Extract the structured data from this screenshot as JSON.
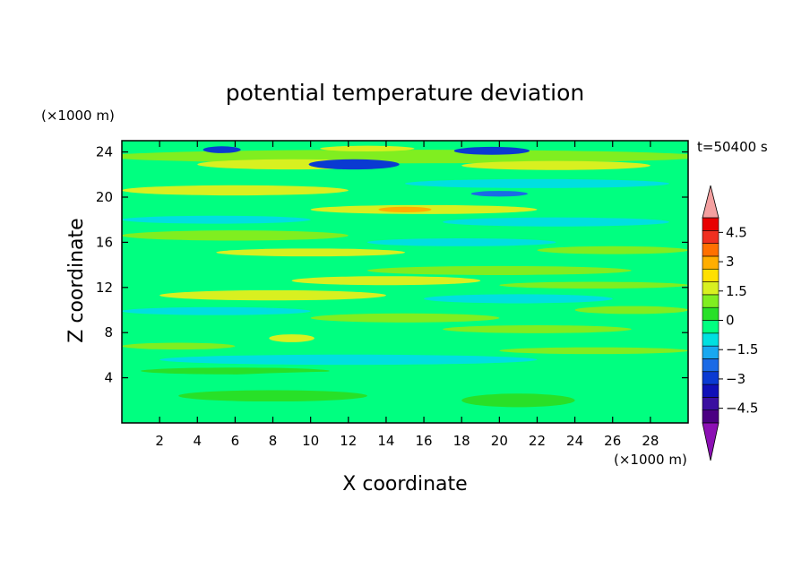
{
  "chart_data": {
    "type": "heatmap",
    "title": "potential temperature deviation",
    "time_label": "t=50400 s",
    "xlabel": "X coordinate",
    "ylabel": "Z coordinate",
    "x_unit": "(×1000 m)",
    "y_unit": "(×1000 m)",
    "xlim": [
      0,
      30
    ],
    "ylim": [
      0,
      25
    ],
    "x_ticks": [
      "2",
      "4",
      "6",
      "8",
      "10",
      "12",
      "14",
      "16",
      "18",
      "20",
      "22",
      "24",
      "26",
      "28"
    ],
    "y_ticks": [
      "4",
      "8",
      "12",
      "16",
      "20",
      "24"
    ],
    "colorbar": {
      "labels": [
        "4.5",
        "3",
        "1.5",
        "0",
        "−1.5",
        "−3",
        "−4.5"
      ],
      "label_values": [
        4.5,
        3,
        1.5,
        0,
        -1.5,
        -3,
        -4.5
      ],
      "levels": [
        -5.25,
        -4.5,
        -3.75,
        -3,
        -2.25,
        -1.5,
        -0.75,
        0,
        0.75,
        1.5,
        2.25,
        3,
        3.75,
        4.5,
        5.25
      ],
      "colors": [
        "#4b0082",
        "#3a0fa0",
        "#1010b8",
        "#0a3ad2",
        "#1a6ae6",
        "#18a8f0",
        "#00e0e0",
        "#00ff80",
        "#28e028",
        "#80ee20",
        "#d8f020",
        "#ffe000",
        "#ffae00",
        "#ff7000",
        "#f03020",
        "#e80000"
      ],
      "over_color": "#f4a0a0",
      "under_color": "#8c10b4"
    },
    "bands": [
      {
        "cx": 15,
        "cy": 23.6,
        "rx": 16,
        "ry": 0.6,
        "value": 1.1
      },
      {
        "cx": 9,
        "cy": 22.9,
        "rx": 5,
        "ry": 0.45,
        "value": 1.8
      },
      {
        "cx": 23,
        "cy": 22.8,
        "rx": 5,
        "ry": 0.4,
        "value": 1.5
      },
      {
        "cx": 12.3,
        "cy": 22.9,
        "rx": 2.4,
        "ry": 0.45,
        "value": -3.2
      },
      {
        "cx": 19.6,
        "cy": 24.1,
        "rx": 2.0,
        "ry": 0.35,
        "value": -3.5
      },
      {
        "cx": 5.3,
        "cy": 24.2,
        "rx": 1.0,
        "ry": 0.3,
        "value": -3.2
      },
      {
        "cx": 13,
        "cy": 24.3,
        "rx": 2.5,
        "ry": 0.25,
        "value": 2.2
      },
      {
        "cx": 22,
        "cy": 21.2,
        "rx": 7,
        "ry": 0.4,
        "value": -1.0
      },
      {
        "cx": 6,
        "cy": 20.6,
        "rx": 6,
        "ry": 0.45,
        "value": 1.5
      },
      {
        "cx": 20,
        "cy": 20.3,
        "rx": 1.5,
        "ry": 0.25,
        "value": -2.5
      },
      {
        "cx": 16,
        "cy": 18.9,
        "rx": 6,
        "ry": 0.4,
        "value": 1.6
      },
      {
        "cx": 15,
        "cy": 18.9,
        "rx": 1.4,
        "ry": 0.25,
        "value": 3.6
      },
      {
        "cx": 5,
        "cy": 18.0,
        "rx": 5,
        "ry": 0.35,
        "value": -0.9
      },
      {
        "cx": 23,
        "cy": 17.8,
        "rx": 6,
        "ry": 0.4,
        "value": -0.8
      },
      {
        "cx": 6,
        "cy": 16.6,
        "rx": 6,
        "ry": 0.45,
        "value": 1.3
      },
      {
        "cx": 10,
        "cy": 15.1,
        "rx": 5,
        "ry": 0.35,
        "value": 1.6
      },
      {
        "cx": 26,
        "cy": 15.3,
        "rx": 4,
        "ry": 0.35,
        "value": 1.0
      },
      {
        "cx": 18,
        "cy": 16.0,
        "rx": 5,
        "ry": 0.35,
        "value": -0.9
      },
      {
        "cx": 20,
        "cy": 13.5,
        "rx": 7,
        "ry": 0.4,
        "value": 1.2
      },
      {
        "cx": 14,
        "cy": 12.6,
        "rx": 5,
        "ry": 0.4,
        "value": 1.6
      },
      {
        "cx": 8,
        "cy": 11.3,
        "rx": 6,
        "ry": 0.45,
        "value": 1.7
      },
      {
        "cx": 25,
        "cy": 12.2,
        "rx": 5,
        "ry": 0.3,
        "value": 1.0
      },
      {
        "cx": 21,
        "cy": 11.0,
        "rx": 5,
        "ry": 0.4,
        "value": -1.0
      },
      {
        "cx": 27,
        "cy": 10.0,
        "rx": 3,
        "ry": 0.35,
        "value": 1.2
      },
      {
        "cx": 15,
        "cy": 9.3,
        "rx": 5,
        "ry": 0.4,
        "value": 1.3
      },
      {
        "cx": 5,
        "cy": 9.9,
        "rx": 5,
        "ry": 0.35,
        "value": -0.8
      },
      {
        "cx": 22,
        "cy": 8.3,
        "rx": 5,
        "ry": 0.35,
        "value": 1.1
      },
      {
        "cx": 9,
        "cy": 7.5,
        "rx": 1.2,
        "ry": 0.35,
        "value": 1.6
      },
      {
        "cx": 3,
        "cy": 6.8,
        "rx": 3,
        "ry": 0.3,
        "value": 0.9
      },
      {
        "cx": 16,
        "cy": 6.9,
        "rx": 8,
        "ry": 0.35,
        "value": -0.7
      },
      {
        "cx": 25,
        "cy": 6.4,
        "rx": 5,
        "ry": 0.3,
        "value": 0.9
      },
      {
        "cx": 12,
        "cy": 5.6,
        "rx": 10,
        "ry": 0.45,
        "value": -0.8
      },
      {
        "cx": 6,
        "cy": 4.6,
        "rx": 5,
        "ry": 0.3,
        "value": 0.6
      },
      {
        "cx": 15,
        "cy": 3.2,
        "rx": 14,
        "ry": 1.4,
        "value": -0.35
      },
      {
        "cx": 8,
        "cy": 2.4,
        "rx": 5,
        "ry": 0.5,
        "value": 0.5
      },
      {
        "cx": 21,
        "cy": 2.0,
        "rx": 3,
        "ry": 0.6,
        "value": 0.5
      }
    ]
  }
}
